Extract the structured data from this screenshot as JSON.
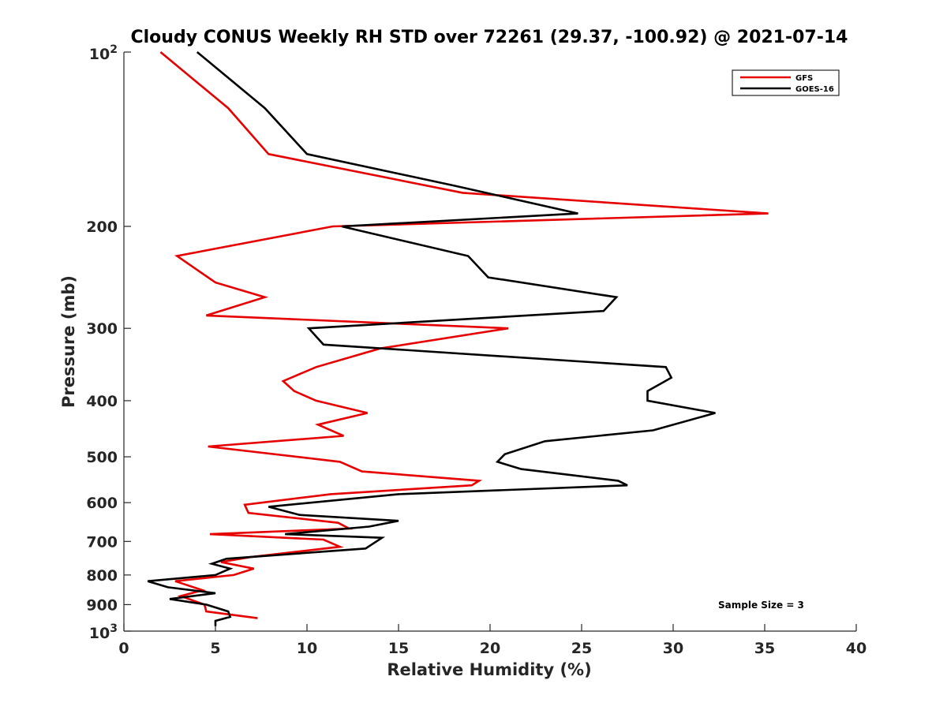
{
  "chart_data": {
    "type": "line",
    "title": "Cloudy CONUS Weekly RH STD over 72261 (29.37, -100.92) @ 2021-07-14",
    "xlabel": "Relative Humidity (%)",
    "ylabel": "Pressure (mb)",
    "xlim": [
      0,
      40
    ],
    "ylim": [
      100,
      1000
    ],
    "y_scale": "log",
    "y_reversed": true,
    "grid": false,
    "legend_position": "top-right",
    "x_ticks": [
      "0",
      "5",
      "10",
      "15",
      "20",
      "25",
      "30",
      "35",
      "40"
    ],
    "y_ticks": [
      {
        "value": 200,
        "label": "200"
      },
      {
        "value": 300,
        "label": "300"
      },
      {
        "value": 400,
        "label": "400"
      },
      {
        "value": 500,
        "label": "500"
      },
      {
        "value": 600,
        "label": "600"
      },
      {
        "value": 700,
        "label": "700"
      },
      {
        "value": 800,
        "label": "800"
      },
      {
        "value": 900,
        "label": "900"
      }
    ],
    "y_edge_labels": {
      "top_base": "10",
      "top_exp": "2",
      "bottom_base": "10",
      "bottom_exp": "3"
    },
    "series": [
      {
        "name": "GFS",
        "color": "#e60000",
        "points": [
          [
            2.0,
            100
          ],
          [
            5.7,
            125
          ],
          [
            7.9,
            150
          ],
          [
            18.5,
            175
          ],
          [
            35.2,
            190
          ],
          [
            11.4,
            200
          ],
          [
            2.9,
            225
          ],
          [
            5.0,
            250
          ],
          [
            7.7,
            265
          ],
          [
            4.5,
            285
          ],
          [
            21.0,
            300
          ],
          [
            14.0,
            325
          ],
          [
            10.5,
            350
          ],
          [
            8.7,
            370
          ],
          [
            9.3,
            385
          ],
          [
            10.5,
            400
          ],
          [
            13.3,
            420
          ],
          [
            10.6,
            440
          ],
          [
            12.0,
            460
          ],
          [
            4.6,
            480
          ],
          [
            11.8,
            510
          ],
          [
            13.0,
            530
          ],
          [
            19.4,
            550
          ],
          [
            19.0,
            560
          ],
          [
            11.3,
            580
          ],
          [
            6.6,
            605
          ],
          [
            6.8,
            625
          ],
          [
            11.7,
            650
          ],
          [
            12.3,
            665
          ],
          [
            4.7,
            680
          ],
          [
            10.9,
            695
          ],
          [
            11.8,
            715
          ],
          [
            6.9,
            745
          ],
          [
            5.3,
            760
          ],
          [
            7.1,
            780
          ],
          [
            6.0,
            800
          ],
          [
            2.8,
            820
          ],
          [
            4.3,
            850
          ],
          [
            3.1,
            870
          ],
          [
            4.4,
            900
          ],
          [
            4.5,
            925
          ],
          [
            7.3,
            950
          ]
        ]
      },
      {
        "name": "GOES-16",
        "color": "#000000",
        "points": [
          [
            4.0,
            100
          ],
          [
            7.7,
            125
          ],
          [
            10.0,
            150
          ],
          [
            18.0,
            170
          ],
          [
            24.8,
            190
          ],
          [
            11.9,
            200
          ],
          [
            18.8,
            225
          ],
          [
            19.9,
            245
          ],
          [
            26.9,
            265
          ],
          [
            26.2,
            280
          ],
          [
            10.1,
            300
          ],
          [
            10.9,
            320
          ],
          [
            29.6,
            350
          ],
          [
            29.9,
            365
          ],
          [
            28.6,
            385
          ],
          [
            28.6,
            400
          ],
          [
            32.3,
            420
          ],
          [
            28.9,
            450
          ],
          [
            23.0,
            470
          ],
          [
            20.8,
            495
          ],
          [
            20.4,
            510
          ],
          [
            21.7,
            525
          ],
          [
            27.0,
            550
          ],
          [
            27.5,
            560
          ],
          [
            15.0,
            580
          ],
          [
            7.9,
            610
          ],
          [
            9.6,
            630
          ],
          [
            15.0,
            645
          ],
          [
            13.4,
            660
          ],
          [
            8.8,
            680
          ],
          [
            14.1,
            690
          ],
          [
            13.2,
            720
          ],
          [
            5.6,
            750
          ],
          [
            4.8,
            765
          ],
          [
            5.8,
            780
          ],
          [
            5.0,
            800
          ],
          [
            1.3,
            820
          ],
          [
            2.4,
            840
          ],
          [
            5.0,
            860
          ],
          [
            2.5,
            880
          ],
          [
            4.5,
            900
          ],
          [
            5.7,
            925
          ],
          [
            5.8,
            945
          ],
          [
            5.0,
            960
          ],
          [
            5.0,
            980
          ]
        ]
      }
    ],
    "annotation": "Sample Size = 3"
  }
}
